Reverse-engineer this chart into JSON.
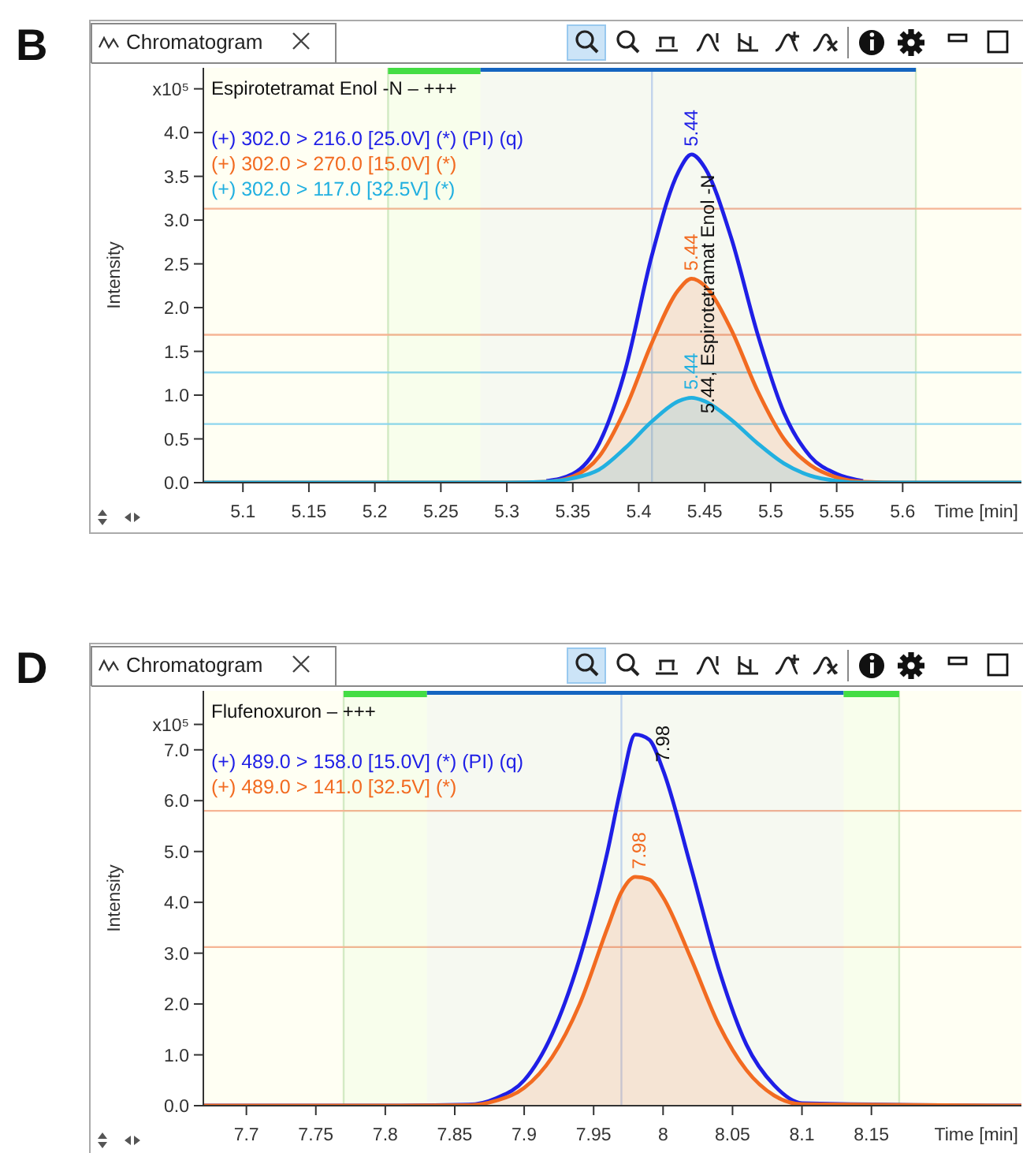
{
  "chart_data": [
    {
      "type": "line",
      "title": "Espirotetramat Enol -N – +++",
      "xlabel": "Time [min]",
      "ylabel": "Intensity",
      "legend": "top left",
      "annotations": [
        "B",
        "Chromatogram",
        {
          "text": "5.44",
          "x": 5.44,
          "y": 3.75
        },
        {
          "text": "5.44",
          "x": 5.44,
          "y": 2.33
        },
        {
          "text": "5.44",
          "x": 5.44,
          "y": 0.97
        },
        {
          "text": "5.44, Espirotetramat Enol -N",
          "x": 5.452,
          "y": 0.7
        }
      ],
      "xlim": [
        5.07,
        5.69
      ],
      "xticks": [
        5.1,
        5.15,
        5.2,
        5.25,
        5.3,
        5.35,
        5.4,
        5.45,
        5.5,
        5.55,
        5.6
      ],
      "ylim": [
        0,
        4.74
      ],
      "yticks": [
        {
          "value": 0,
          "label": "0.0"
        },
        {
          "value": 0.5,
          "label": "0.5"
        },
        {
          "value": 1,
          "label": "1.0"
        },
        {
          "value": 1.5,
          "label": "1.5"
        },
        {
          "value": 2,
          "label": "2.0"
        },
        {
          "value": 2.5,
          "label": "2.5"
        },
        {
          "value": 3,
          "label": "3.0"
        },
        {
          "value": 3.5,
          "label": "3.5"
        },
        {
          "value": 4,
          "label": "4.0"
        },
        {
          "value": 4.5,
          "label": "x10⁵"
        }
      ],
      "ref_lines": [
        {
          "axis": "x",
          "value": 5.21,
          "color": "#d6ebc6"
        },
        {
          "axis": "x",
          "value": 5.61,
          "color": "#d6ebc6"
        },
        {
          "axis": "x",
          "value": 5.41,
          "color": "#c9d9ee"
        },
        {
          "axis": "y",
          "value": 3.13,
          "color": "#f6b595"
        },
        {
          "axis": "y",
          "value": 1.69,
          "color": "#f6b595"
        },
        {
          "axis": "y",
          "value": 1.26,
          "color": "#8ed6ee"
        },
        {
          "axis": "y",
          "value": 0.67,
          "color": "#8ed6ee"
        }
      ],
      "bands": [
        {
          "axis": "x",
          "from": 5.21,
          "to": 5.28,
          "color": "#44dd44"
        },
        {
          "axis": "x",
          "from": 5.28,
          "to": 5.61,
          "color": "#1565c0"
        }
      ],
      "series": [
        {
          "name": "(+) 302.0 > 216.0 [25.0V] (*) (PI) (q)",
          "type": "line",
          "color": "#1f1fe6",
          "x": [
            5.33,
            5.35,
            5.37,
            5.39,
            5.41,
            5.43,
            5.44,
            5.45,
            5.47,
            5.49,
            5.51,
            5.53,
            5.55,
            5.57
          ],
          "values": [
            0.02,
            0.1,
            0.45,
            1.3,
            2.6,
            3.55,
            3.75,
            3.6,
            2.8,
            1.7,
            0.8,
            0.3,
            0.1,
            0.02
          ]
        },
        {
          "name": "(+) 302.0 > 270.0 [15.0V] (*)",
          "type": "area",
          "color": "#f26b21",
          "x": [
            5.07,
            5.2,
            5.3,
            5.33,
            5.35,
            5.37,
            5.39,
            5.41,
            5.43,
            5.44,
            5.45,
            5.47,
            5.49,
            5.51,
            5.53,
            5.55,
            5.57,
            5.6,
            5.69
          ],
          "values": [
            0,
            0,
            0,
            0.01,
            0.07,
            0.3,
            0.85,
            1.6,
            2.2,
            2.33,
            2.25,
            1.75,
            1.05,
            0.5,
            0.2,
            0.06,
            0.01,
            0,
            0
          ]
        },
        {
          "name": "(+) 302.0 > 117.0 [32.5V] (*)",
          "type": "area",
          "color": "#22b0e0",
          "x": [
            5.07,
            5.2,
            5.3,
            5.33,
            5.35,
            5.37,
            5.39,
            5.41,
            5.43,
            5.44,
            5.45,
            5.47,
            5.49,
            5.51,
            5.53,
            5.55,
            5.57,
            5.6,
            5.69
          ],
          "values": [
            0,
            0,
            0,
            0.01,
            0.05,
            0.15,
            0.4,
            0.7,
            0.93,
            0.97,
            0.93,
            0.72,
            0.45,
            0.22,
            0.08,
            0.02,
            0,
            0,
            0
          ]
        }
      ]
    },
    {
      "type": "line",
      "title": "Flufenoxuron – +++",
      "xlabel": "Time [min]",
      "ylabel": "Intensity",
      "legend": "top left",
      "annotations": [
        "D",
        "Chromatogram",
        {
          "text": "7.98",
          "x": 8.0,
          "y": 6.6
        },
        {
          "text": "7.98",
          "x": 7.983,
          "y": 4.5
        }
      ],
      "xlim": [
        7.669,
        8.258
      ],
      "xticks": [
        7.7,
        7.75,
        7.8,
        7.85,
        7.9,
        7.95,
        8,
        8.05,
        8.1,
        8.15
      ],
      "ylim": [
        0,
        8.16
      ],
      "yticks": [
        {
          "value": 0,
          "label": "0.0"
        },
        {
          "value": 1,
          "label": "1.0"
        },
        {
          "value": 2,
          "label": "2.0"
        },
        {
          "value": 3,
          "label": "3.0"
        },
        {
          "value": 4,
          "label": "4.0"
        },
        {
          "value": 5,
          "label": "5.0"
        },
        {
          "value": 6,
          "label": "6.0"
        },
        {
          "value": 7,
          "label": "7.0"
        },
        {
          "value": 7.5,
          "label": "x10⁵"
        }
      ],
      "ref_lines": [
        {
          "axis": "x",
          "value": 7.77,
          "color": "#d6ebc6"
        },
        {
          "axis": "x",
          "value": 8.17,
          "color": "#d6ebc6"
        },
        {
          "axis": "x",
          "value": 7.97,
          "color": "#c9d9ee"
        },
        {
          "axis": "y",
          "value": 5.8,
          "color": "#f6b595"
        },
        {
          "axis": "y",
          "value": 3.12,
          "color": "#f6b595"
        }
      ],
      "bands": [
        {
          "axis": "x",
          "from": 7.77,
          "to": 7.83,
          "color": "#44dd44"
        },
        {
          "axis": "x",
          "from": 7.83,
          "to": 8.13,
          "color": "#1565c0"
        },
        {
          "axis": "x",
          "from": 8.13,
          "to": 8.17,
          "color": "#44dd44"
        }
      ],
      "series": [
        {
          "name": "(+) 489.0 > 158.0 [15.0V] (*) (PI) (q)",
          "type": "line",
          "color": "#1f1fe6",
          "x": [
            7.669,
            7.8,
            7.86,
            7.88,
            7.9,
            7.92,
            7.94,
            7.96,
            7.97,
            7.98,
            7.99,
            8.0,
            8.02,
            8.04,
            8.06,
            8.08,
            8.1,
            8.258
          ],
          "values": [
            0,
            0,
            0.02,
            0.15,
            0.5,
            1.4,
            2.9,
            5.0,
            6.3,
            7.3,
            7.2,
            6.6,
            4.7,
            2.7,
            1.2,
            0.4,
            0.05,
            0
          ]
        },
        {
          "name": "(+) 489.0 > 141.0 [32.5V] (*)",
          "type": "area",
          "color": "#f26b21",
          "x": [
            7.669,
            7.8,
            7.86,
            7.88,
            7.9,
            7.92,
            7.94,
            7.96,
            7.97,
            7.98,
            7.99,
            8.0,
            8.02,
            8.04,
            8.06,
            8.08,
            8.1,
            8.258
          ],
          "values": [
            0,
            0,
            0.01,
            0.1,
            0.35,
            0.95,
            2.0,
            3.5,
            4.2,
            4.5,
            4.45,
            4.1,
            2.9,
            1.6,
            0.7,
            0.2,
            0.03,
            0
          ]
        }
      ]
    }
  ]
}
